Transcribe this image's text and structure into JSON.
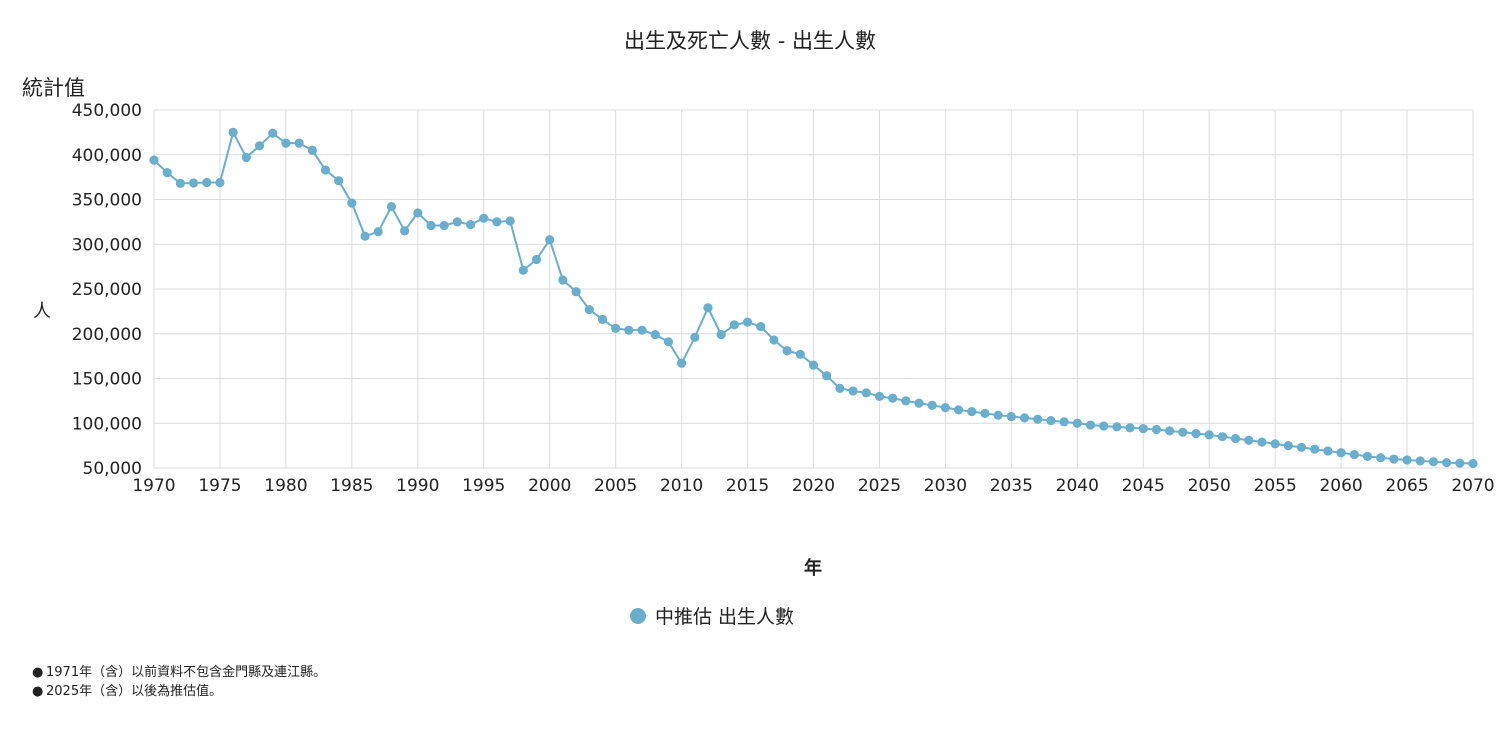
{
  "chart_data": {
    "type": "line",
    "title": "出生及死亡人數 - 出生人數",
    "unit_label": "統計值",
    "ylabel": "人",
    "xlabel": "年",
    "xlim": [
      1970,
      2070
    ],
    "ylim": [
      50000,
      450000
    ],
    "x_ticks": [
      1970,
      1975,
      1980,
      1985,
      1990,
      1995,
      2000,
      2005,
      2010,
      2015,
      2020,
      2025,
      2030,
      2035,
      2040,
      2045,
      2050,
      2055,
      2060,
      2065,
      2070
    ],
    "x_tick_labels": [
      "1970",
      "1975",
      "1980",
      "1985",
      "1990",
      "1995",
      "2000",
      "2005",
      "2010",
      "2015",
      "2020",
      "2025",
      "2030",
      "2035",
      "2040",
      "2045",
      "2050",
      "2055",
      "2060",
      "2065",
      "2070"
    ],
    "y_ticks": [
      50000,
      100000,
      150000,
      200000,
      250000,
      300000,
      350000,
      400000,
      450000
    ],
    "y_tick_labels": [
      "50,000",
      "100,000",
      "150,000",
      "200,000",
      "250,000",
      "300,000",
      "350,000",
      "400,000",
      "450,000"
    ],
    "legend": "bottom-center",
    "grid": true,
    "series": [
      {
        "name": "中推估 出生人數",
        "color": "#6aaecd",
        "x": [
          1970,
          1971,
          1972,
          1973,
          1974,
          1975,
          1976,
          1977,
          1978,
          1979,
          1980,
          1981,
          1982,
          1983,
          1984,
          1985,
          1986,
          1987,
          1988,
          1989,
          1990,
          1991,
          1992,
          1993,
          1994,
          1995,
          1996,
          1997,
          1998,
          1999,
          2000,
          2001,
          2002,
          2003,
          2004,
          2005,
          2006,
          2007,
          2008,
          2009,
          2010,
          2011,
          2012,
          2013,
          2014,
          2015,
          2016,
          2017,
          2018,
          2019,
          2020,
          2021,
          2022,
          2023,
          2024,
          2025,
          2026,
          2027,
          2028,
          2029,
          2030,
          2031,
          2032,
          2033,
          2034,
          2035,
          2036,
          2037,
          2038,
          2039,
          2040,
          2041,
          2042,
          2043,
          2044,
          2045,
          2046,
          2047,
          2048,
          2049,
          2050,
          2051,
          2052,
          2053,
          2054,
          2055,
          2056,
          2057,
          2058,
          2059,
          2060,
          2061,
          2062,
          2063,
          2064,
          2065,
          2066,
          2067,
          2068,
          2069,
          2070
        ],
        "values": [
          394000,
          380000,
          368000,
          368500,
          369000,
          369000,
          425000,
          397000,
          410000,
          424000,
          413000,
          413000,
          405000,
          383000,
          371000,
          346000,
          309000,
          314000,
          342000,
          315000,
          335000,
          321000,
          321000,
          325000,
          322000,
          329000,
          325000,
          326000,
          271000,
          283000,
          305000,
          260000,
          247000,
          227000,
          216000,
          206000,
          204000,
          204000,
          199000,
          191000,
          167000,
          196000,
          229000,
          199000,
          210000,
          213000,
          208000,
          193000,
          181000,
          177000,
          165000,
          153000,
          139000,
          136000,
          134000,
          130000,
          128000,
          125000,
          122500,
          120000,
          117500,
          115000,
          113000,
          111000,
          109000,
          107500,
          106000,
          104500,
          103000,
          101500,
          100000,
          98000,
          97000,
          96000,
          95000,
          94000,
          93000,
          91500,
          90000,
          88500,
          87000,
          85000,
          83000,
          81000,
          79000,
          77000,
          75000,
          73000,
          71000,
          69000,
          67000,
          65000,
          63000,
          61500,
          60000,
          59000,
          58000,
          57000,
          56000,
          55500,
          55000
        ]
      }
    ]
  },
  "notes": [
    "1971年（含）以前資料不包含金門縣及連江縣。",
    "2025年（含）以後為推估值。"
  ]
}
